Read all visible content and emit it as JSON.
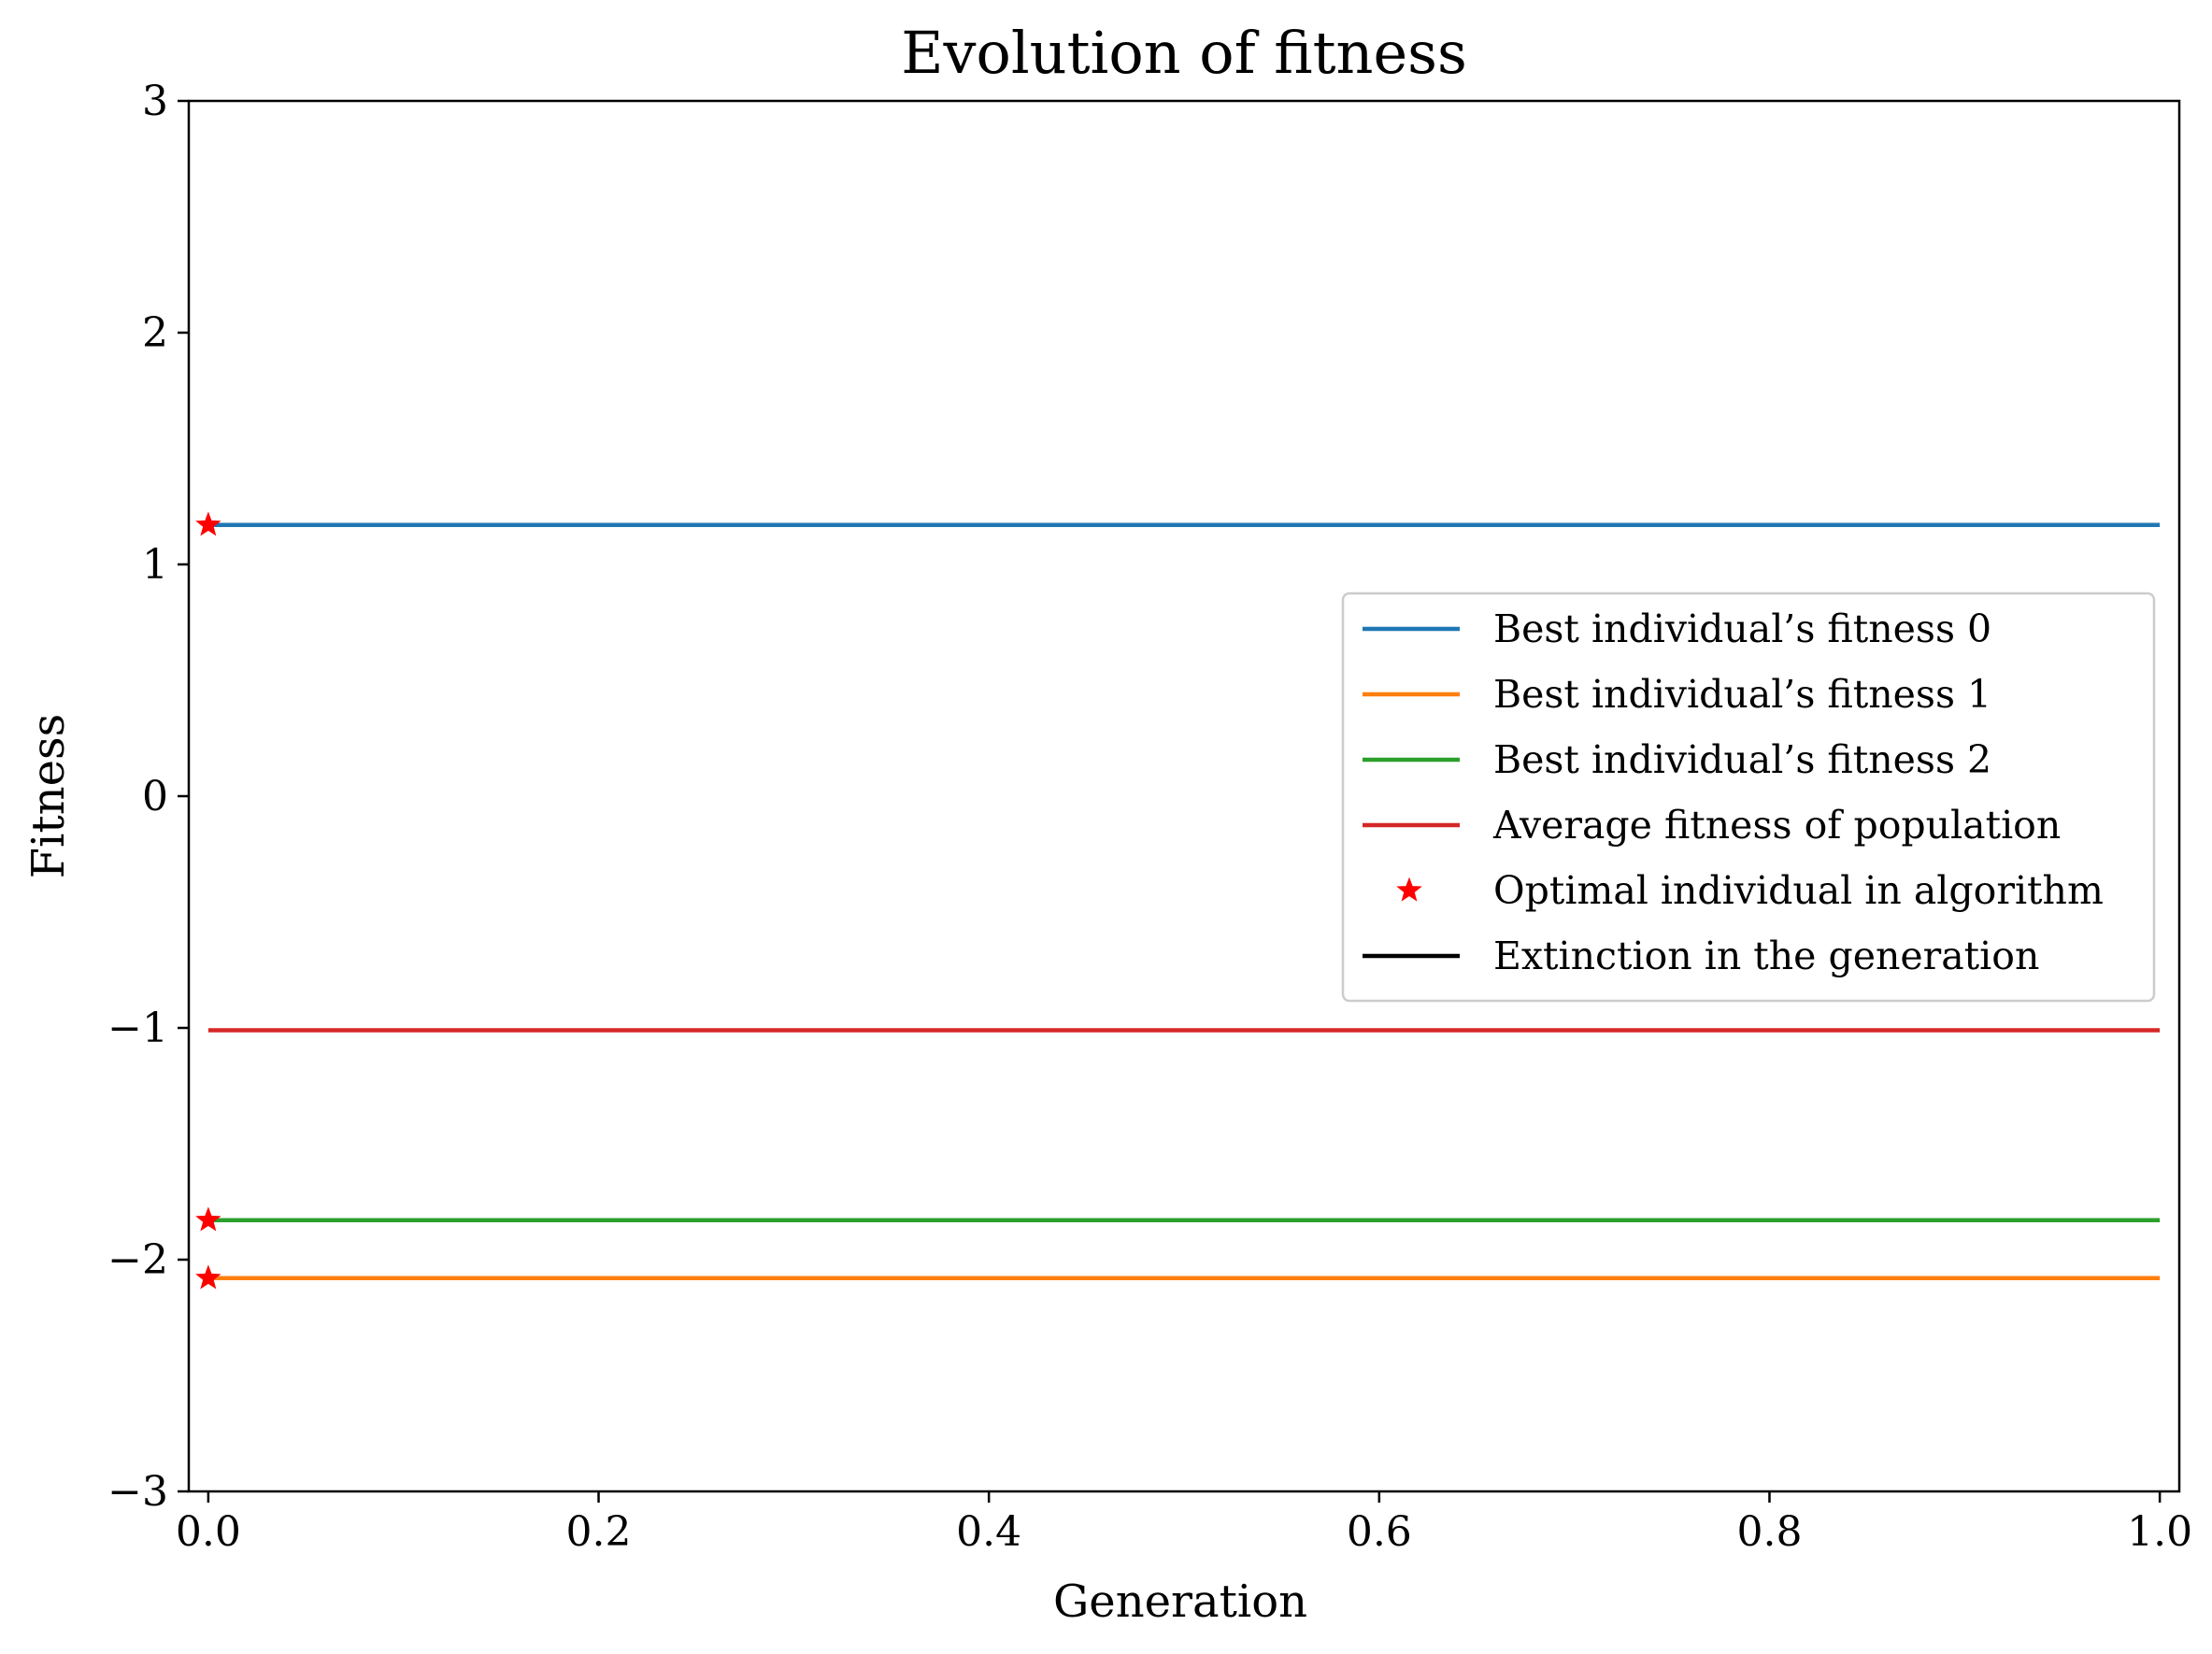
{
  "chart_data": {
    "type": "line",
    "title": "Evolution of fitness",
    "xlabel": "Generation",
    "ylabel": "Fitness",
    "xlim": [
      -0.01,
      1.01
    ],
    "ylim": [
      -3,
      3
    ],
    "xticks": [
      {
        "value": 0.0,
        "label": "0.0"
      },
      {
        "value": 0.2,
        "label": "0.2"
      },
      {
        "value": 0.4,
        "label": "0.4"
      },
      {
        "value": 0.6,
        "label": "0.6"
      },
      {
        "value": 0.8,
        "label": "0.8"
      },
      {
        "value": 1.0,
        "label": "1.0"
      }
    ],
    "yticks": [
      {
        "value": -3,
        "label": "−3"
      },
      {
        "value": -2,
        "label": "−2"
      },
      {
        "value": -1,
        "label": "−1"
      },
      {
        "value": 0,
        "label": "0"
      },
      {
        "value": 1,
        "label": "1"
      },
      {
        "value": 2,
        "label": "2"
      },
      {
        "value": 3,
        "label": "3"
      }
    ],
    "grid": false,
    "legend_position": "center-right",
    "series": [
      {
        "name": "Best individual’s fitness 0",
        "kind": "line",
        "color": "#1f77b4",
        "x": [
          0,
          1
        ],
        "y": [
          1.17,
          1.17
        ]
      },
      {
        "name": "Best individual’s fitness 1",
        "kind": "line",
        "color": "#ff7f0e",
        "x": [
          0,
          1
        ],
        "y": [
          -2.08,
          -2.08
        ]
      },
      {
        "name": "Best individual’s fitness 2",
        "kind": "line",
        "color": "#2ca02c",
        "x": [
          0,
          1
        ],
        "y": [
          -1.83,
          -1.83
        ]
      },
      {
        "name": "Average fitness of population",
        "kind": "line",
        "color": "#d62728",
        "x": [
          0,
          1
        ],
        "y": [
          -1.01,
          -1.01
        ]
      },
      {
        "name": "Optimal individual in algorithm",
        "kind": "marker",
        "marker": "star",
        "color": "#ff0000",
        "x": [
          0,
          0,
          0
        ],
        "y": [
          1.17,
          -1.83,
          -2.08
        ]
      },
      {
        "name": "Extinction in the generation",
        "kind": "line",
        "color": "#000000",
        "x": [],
        "y": []
      }
    ]
  }
}
